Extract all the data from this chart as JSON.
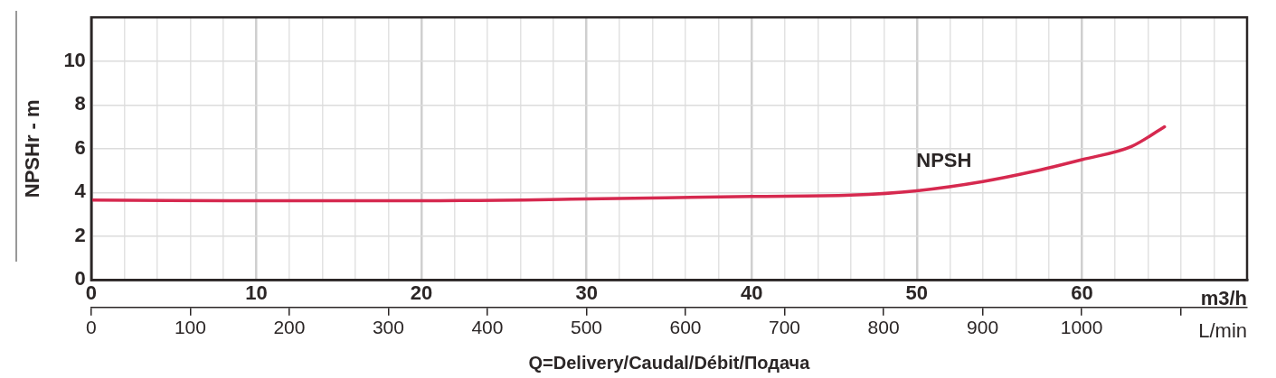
{
  "chart_data": {
    "type": "line",
    "xlabel": "m3/h",
    "x2label": "L/min",
    "ylabel": "NPSHr - m",
    "x": [
      0,
      10,
      20,
      30,
      40,
      46,
      50,
      54,
      57,
      60,
      63,
      65
    ],
    "series": [
      {
        "name": "NPSH",
        "color": "#d6294f",
        "values": [
          3.65,
          3.62,
          3.62,
          3.7,
          3.82,
          3.88,
          4.08,
          4.5,
          4.95,
          5.5,
          6.1,
          7.0
        ]
      }
    ],
    "xlim": [
      0,
      70
    ],
    "xticks": [
      0,
      {
        "value": 2,
        "label": null
      },
      {
        "value": 4,
        "label": null
      },
      {
        "value": 6,
        "label": null
      },
      {
        "value": 8,
        "label": null
      },
      10,
      {
        "value": 12,
        "label": null
      },
      {
        "value": 14,
        "label": null
      },
      {
        "value": 16,
        "label": null
      },
      {
        "value": 18,
        "label": null
      },
      20,
      {
        "value": 22,
        "label": null
      },
      {
        "value": 24,
        "label": null
      },
      {
        "value": 26,
        "label": null
      },
      {
        "value": 28,
        "label": null
      },
      30,
      {
        "value": 32,
        "label": null
      },
      {
        "value": 34,
        "label": null
      },
      {
        "value": 36,
        "label": null
      },
      {
        "value": 38,
        "label": null
      },
      40,
      {
        "value": 42,
        "label": null
      },
      {
        "value": 44,
        "label": null
      },
      {
        "value": 46,
        "label": null
      },
      {
        "value": 48,
        "label": null
      },
      50,
      {
        "value": 52,
        "label": null
      },
      {
        "value": 54,
        "label": null
      },
      {
        "value": 56,
        "label": null
      },
      {
        "value": 58,
        "label": null
      },
      60,
      {
        "value": 62,
        "label": null
      },
      {
        "value": 64,
        "label": null
      },
      {
        "value": 66,
        "label": null
      },
      {
        "value": 68,
        "label": null
      }
    ],
    "x2lim": [
      0,
      1167
    ],
    "x2ticks": [
      0,
      100,
      200,
      300,
      400,
      500,
      600,
      700,
      800,
      900,
      1000,
      {
        "value": 1100,
        "label": null
      }
    ],
    "ylim": [
      0,
      12
    ],
    "yticks": [
      0,
      2,
      4,
      6,
      8,
      10
    ],
    "grid": true,
    "marker": "none",
    "line_style": "solid",
    "annotations": [
      "Q=Delivery/Caudal/Débit/Подача"
    ]
  }
}
